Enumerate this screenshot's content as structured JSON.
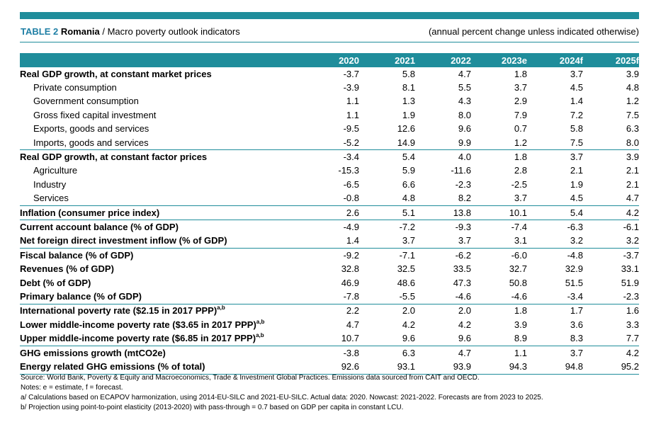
{
  "caption": {
    "label": "TABLE 2",
    "country": "Romania",
    "separator": " / ",
    "subtitle": "Macro poverty outlook indicators",
    "units_note": "(annual percent change unless indicated otherwise)"
  },
  "columns": [
    "2020",
    "2021",
    "2022",
    "2023e",
    "2024f",
    "2025f"
  ],
  "rows": [
    {
      "label": "Real GDP growth, at constant market prices",
      "sup": "",
      "values": [
        "-3.7",
        "5.8",
        "4.7",
        "1.8",
        "3.7",
        "3.9"
      ]
    },
    {
      "label": "Private consumption",
      "sup": "",
      "values": [
        "-3.9",
        "8.1",
        "5.5",
        "3.7",
        "4.5",
        "4.8"
      ]
    },
    {
      "label": "Government consumption",
      "sup": "",
      "values": [
        "1.1",
        "1.3",
        "4.3",
        "2.9",
        "1.4",
        "1.2"
      ]
    },
    {
      "label": "Gross fixed capital investment",
      "sup": "",
      "values": [
        "1.1",
        "1.9",
        "8.0",
        "7.9",
        "7.2",
        "7.5"
      ]
    },
    {
      "label": "Exports, goods and services",
      "sup": "",
      "values": [
        "-9.5",
        "12.6",
        "9.6",
        "0.7",
        "5.8",
        "6.3"
      ]
    },
    {
      "label": "Imports, goods and services",
      "sup": "",
      "values": [
        "-5.2",
        "14.9",
        "9.9",
        "1.2",
        "7.5",
        "8.0"
      ]
    },
    {
      "label": "Real GDP growth, at constant factor prices",
      "sup": "",
      "values": [
        "-3.4",
        "5.4",
        "4.0",
        "1.8",
        "3.7",
        "3.9"
      ]
    },
    {
      "label": "Agriculture",
      "sup": "",
      "values": [
        "-15.3",
        "5.9",
        "-11.6",
        "2.8",
        "2.1",
        "2.1"
      ]
    },
    {
      "label": "Industry",
      "sup": "",
      "values": [
        "-6.5",
        "6.6",
        "-2.3",
        "-2.5",
        "1.9",
        "2.1"
      ]
    },
    {
      "label": "Services",
      "sup": "",
      "values": [
        "-0.8",
        "4.8",
        "8.2",
        "3.7",
        "4.5",
        "4.7"
      ]
    },
    {
      "label": "Inflation (consumer price index)",
      "sup": "",
      "values": [
        "2.6",
        "5.1",
        "13.8",
        "10.1",
        "5.4",
        "4.2"
      ]
    },
    {
      "label": "Current account balance (% of GDP)",
      "sup": "",
      "values": [
        "-4.9",
        "-7.2",
        "-9.3",
        "-7.4",
        "-6.3",
        "-6.1"
      ]
    },
    {
      "label": "Net foreign direct investment inflow (% of GDP)",
      "sup": "",
      "values": [
        "1.4",
        "3.7",
        "3.7",
        "3.1",
        "3.2",
        "3.2"
      ]
    },
    {
      "label": "Fiscal balance (% of GDP)",
      "sup": "",
      "values": [
        "-9.2",
        "-7.1",
        "-6.2",
        "-6.0",
        "-4.8",
        "-3.7"
      ]
    },
    {
      "label": "Revenues (% of GDP)",
      "sup": "",
      "values": [
        "32.8",
        "32.5",
        "33.5",
        "32.7",
        "32.9",
        "33.1"
      ]
    },
    {
      "label": "Debt (% of GDP)",
      "sup": "",
      "values": [
        "46.9",
        "48.6",
        "47.3",
        "50.8",
        "51.5",
        "51.9"
      ]
    },
    {
      "label": "Primary balance (% of GDP)",
      "sup": "",
      "values": [
        "-7.8",
        "-5.5",
        "-4.6",
        "-4.6",
        "-3.4",
        "-2.3"
      ]
    },
    {
      "label": "International poverty rate ($2.15 in 2017 PPP)",
      "sup": "a,b",
      "values": [
        "2.2",
        "2.0",
        "2.0",
        "1.8",
        "1.7",
        "1.6"
      ]
    },
    {
      "label": "Lower middle-income poverty rate ($3.65 in 2017 PPP)",
      "sup": "a,b",
      "values": [
        "4.7",
        "4.2",
        "4.2",
        "3.9",
        "3.6",
        "3.3"
      ]
    },
    {
      "label": "Upper middle-income poverty rate ($6.85 in 2017 PPP)",
      "sup": "a,b",
      "values": [
        "10.7",
        "9.6",
        "9.6",
        "8.9",
        "8.3",
        "7.7"
      ]
    },
    {
      "label": "GHG emissions growth (mtCO2e)",
      "sup": "",
      "values": [
        "-3.8",
        "6.3",
        "4.7",
        "1.1",
        "3.7",
        "4.2"
      ]
    },
    {
      "label": "Energy related GHG emissions (% of total)",
      "sup": "",
      "values": [
        "92.6",
        "93.1",
        "93.9",
        "94.3",
        "94.8",
        "95.2"
      ]
    }
  ],
  "notes": [
    "Source: World Bank, Poverty & Equity and Macroeconomics, Trade & Investment Global Practices. Emissions data sourced from CAIT and OECD.",
    "Notes: e = estimate, f = forecast.",
    "a/ Calculations based on ECAPOV harmonization, using 2014-EU-SILC and 2021-EU-SILC. Actual data: 2020. Nowcast: 2021-2022. Forecasts are from 2023 to 2025.",
    "b/ Projection using point-to-point elasticity (2013-2020) with pass-through = 0.7 based on GDP per capita in constant LCU."
  ],
  "colors": {
    "accent": "#1f8d9b",
    "label": "#1f7fa5"
  }
}
